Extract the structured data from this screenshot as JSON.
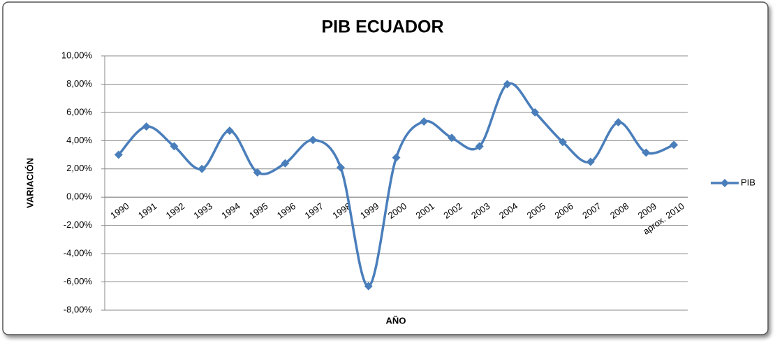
{
  "chart_data": {
    "type": "line",
    "title": "PIB ECUADOR",
    "x_label": "AÑO",
    "y_label": "VARIACIÓN",
    "categories": [
      "1990",
      "1991",
      "1992",
      "1993",
      "1994",
      "1995",
      "1996",
      "1997",
      "1998",
      "1999",
      "2000",
      "2001",
      "2002",
      "2003",
      "2004",
      "2005",
      "2006",
      "2007",
      "2008",
      "2009",
      "aprox. 2010"
    ],
    "series": [
      {
        "name": "PIB",
        "color": "#4a7ebb",
        "values": [
          3.0,
          5.0,
          3.6,
          2.0,
          4.7,
          1.75,
          2.4,
          4.05,
          2.1,
          -6.3,
          2.8,
          5.35,
          4.2,
          3.6,
          8.0,
          6.0,
          3.9,
          2.5,
          5.3,
          3.15,
          3.7
        ]
      }
    ],
    "ylim": [
      -8,
      10
    ],
    "yticks": [
      {
        "value": -8,
        "label": "-8,00%"
      },
      {
        "value": -6,
        "label": "-6,00%"
      },
      {
        "value": -4,
        "label": "-4,00%"
      },
      {
        "value": -2,
        "label": "-2,00%"
      },
      {
        "value": 0,
        "label": "0,00%"
      },
      {
        "value": 2,
        "label": "2,00%"
      },
      {
        "value": 4,
        "label": "4,00%"
      },
      {
        "value": 6,
        "label": "6,00%"
      },
      {
        "value": 8,
        "label": "8,00%"
      },
      {
        "value": 10,
        "label": "10,00%"
      }
    ],
    "grid": true,
    "smooth": true,
    "legend": "right"
  }
}
